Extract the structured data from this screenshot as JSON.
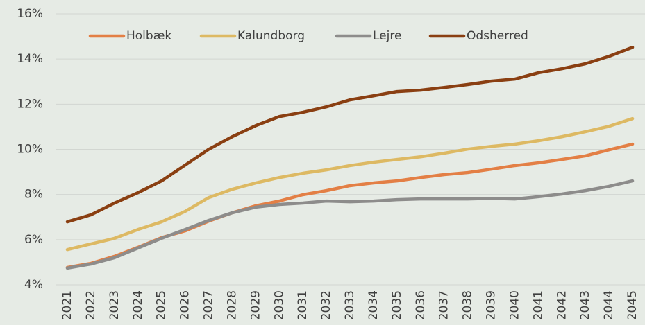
{
  "chart_data": {
    "type": "line",
    "categories": [
      "2021",
      "2022",
      "2023",
      "2024",
      "2025",
      "2026",
      "2027",
      "2028",
      "2029",
      "2030",
      "2031",
      "2032",
      "2033",
      "2034",
      "2035",
      "2036",
      "2037",
      "2038",
      "2039",
      "2040",
      "2041",
      "2042",
      "2043",
      "2044",
      "2045"
    ],
    "series": [
      {
        "name": "Holbæk",
        "color": "#e37f45",
        "values": [
          4.77,
          4.95,
          5.26,
          5.66,
          6.09,
          6.39,
          6.82,
          7.19,
          7.5,
          7.71,
          7.99,
          8.17,
          8.39,
          8.51,
          8.6,
          8.75,
          8.88,
          8.97,
          9.12,
          9.28,
          9.4,
          9.55,
          9.71,
          9.98,
          10.23
        ]
      },
      {
        "name": "Kalundborg",
        "color": "#ddb963",
        "values": [
          5.56,
          5.81,
          6.06,
          6.45,
          6.79,
          7.25,
          7.86,
          8.23,
          8.51,
          8.75,
          8.94,
          9.09,
          9.28,
          9.43,
          9.55,
          9.67,
          9.83,
          10.01,
          10.13,
          10.23,
          10.38,
          10.56,
          10.78,
          11.02,
          11.36
        ]
      },
      {
        "name": "Lejre",
        "color": "#8d8c8b",
        "values": [
          4.74,
          4.92,
          5.2,
          5.63,
          6.06,
          6.45,
          6.85,
          7.19,
          7.44,
          7.56,
          7.62,
          7.71,
          7.68,
          7.71,
          7.77,
          7.8,
          7.8,
          7.8,
          7.83,
          7.8,
          7.9,
          8.02,
          8.17,
          8.36,
          8.6
        ]
      },
      {
        "name": "Odsherred",
        "color": "#8a3f12",
        "values": [
          6.79,
          7.1,
          7.62,
          8.08,
          8.6,
          9.3,
          10.0,
          10.56,
          11.05,
          11.45,
          11.64,
          11.88,
          12.19,
          12.37,
          12.56,
          12.62,
          12.74,
          12.87,
          13.02,
          13.11,
          13.39,
          13.57,
          13.79,
          14.12,
          14.52
        ]
      }
    ],
    "ylim": [
      4,
      16
    ],
    "yticks": [
      {
        "value": 4,
        "label": "4%"
      },
      {
        "value": 6,
        "label": "6%"
      },
      {
        "value": 8,
        "label": "8%"
      },
      {
        "value": 10,
        "label": "10%"
      },
      {
        "value": 12,
        "label": "12%"
      },
      {
        "value": 14,
        "label": "14%"
      },
      {
        "value": 16,
        "label": "16%"
      }
    ],
    "grid": true,
    "legend": "top"
  }
}
